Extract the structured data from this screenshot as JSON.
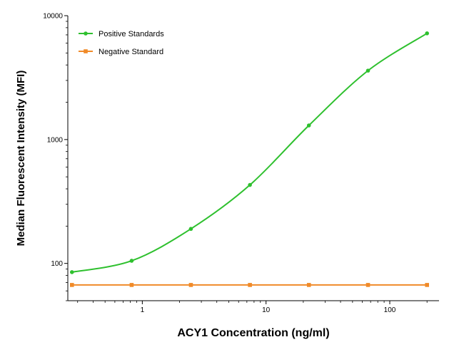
{
  "chart_data": {
    "type": "line",
    "xlabel": "ACY1 Concentration (ng/ml)",
    "ylabel": "Median Fluorescent Intensity  (MFI)",
    "x_scale": "log",
    "y_scale": "log",
    "xlim": [
      0.25,
      250
    ],
    "ylim": [
      50,
      10000
    ],
    "x_ticks": [
      1,
      10,
      100
    ],
    "x_tick_labels": [
      "1",
      "10",
      "100"
    ],
    "y_ticks": [
      100,
      1000,
      10000
    ],
    "y_tick_labels": [
      "100",
      "1000",
      "10000"
    ],
    "grid": false,
    "legend_position": "top-left",
    "series": [
      {
        "name": "Positive Standards",
        "color": "#2ec02e",
        "x": [
          0.27,
          0.82,
          2.47,
          7.41,
          22.2,
          66.7,
          200
        ],
        "y": [
          85,
          105,
          190,
          430,
          1300,
          3600,
          7200
        ]
      },
      {
        "name": "Negative Standard",
        "color": "#f08a28",
        "x": [
          0.27,
          0.82,
          2.47,
          7.41,
          22.2,
          66.7,
          200
        ],
        "y": [
          67,
          67,
          67,
          67,
          67,
          67,
          67
        ]
      }
    ]
  }
}
